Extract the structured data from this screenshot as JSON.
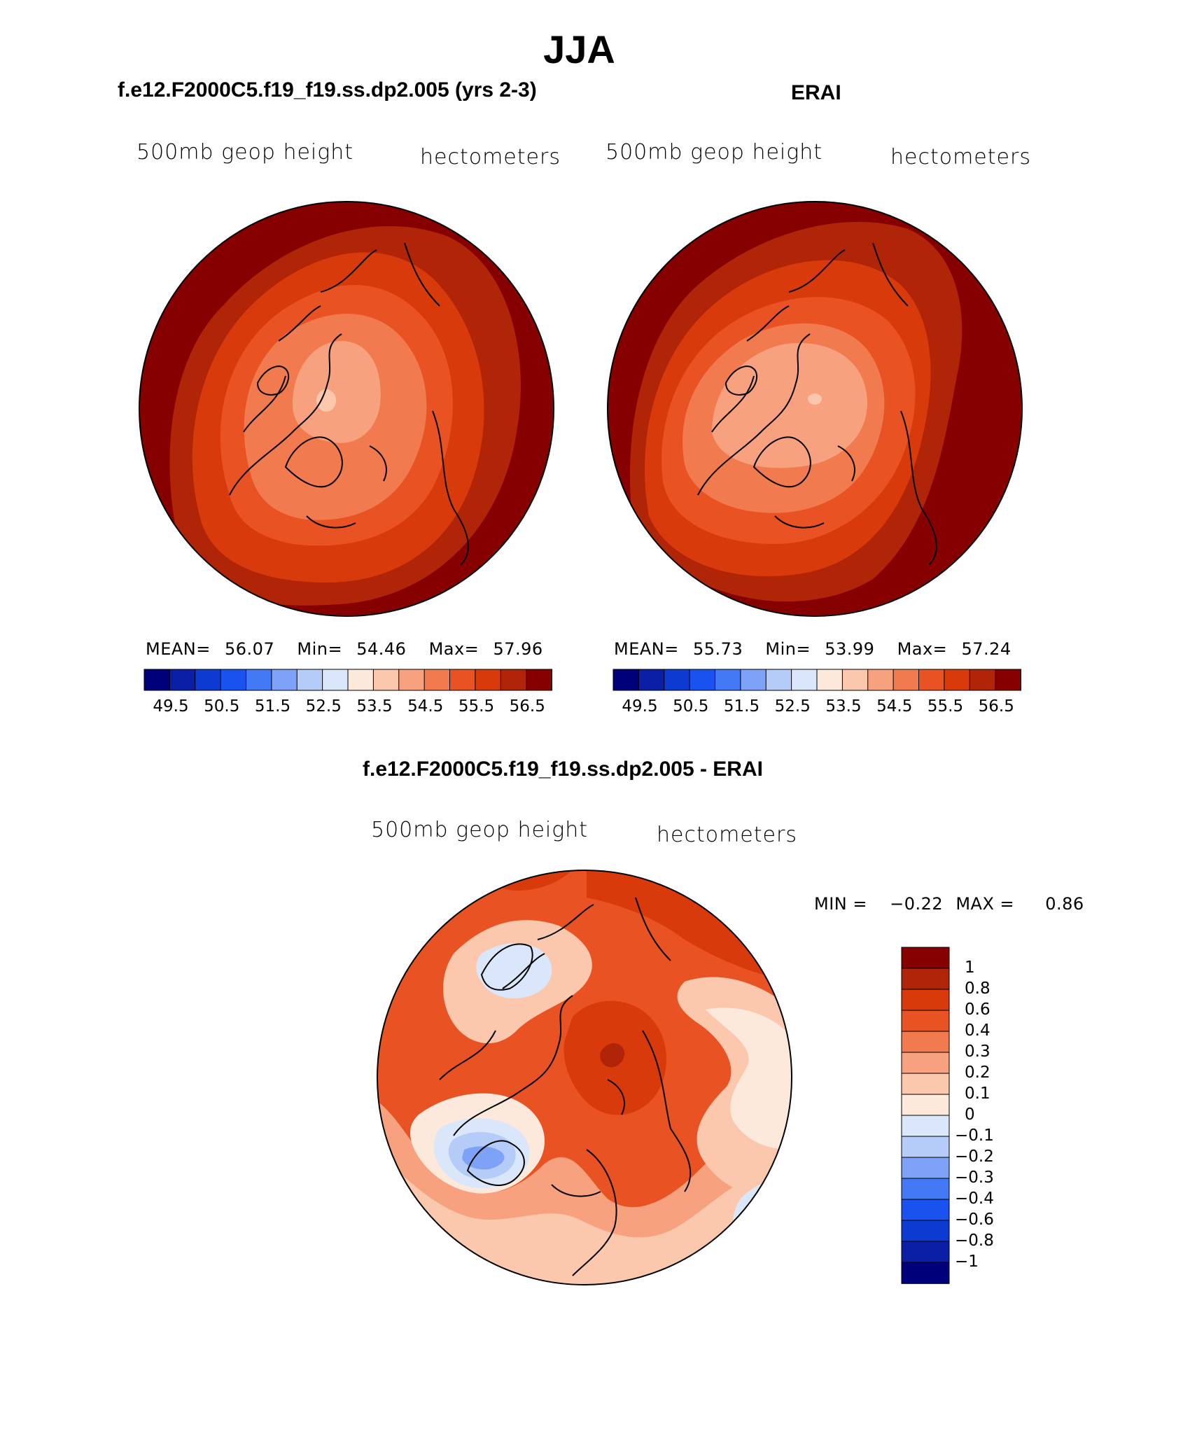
{
  "figure": {
    "season": "JJA"
  },
  "panels": [
    {
      "title": "f.e12.F2000C5.f19_f19.ss.dp2.005 (yrs 2-3)",
      "variable": "500mb geop height",
      "units": "hectometers",
      "stats": {
        "mean_label": "MEAN=",
        "mean": "56.07",
        "min_label": "Min=",
        "min": "54.46",
        "max_label": "Max=",
        "max": "57.96"
      }
    },
    {
      "title": "ERAI",
      "variable": "500mb geop height",
      "units": "hectometers",
      "stats": {
        "mean_label": "MEAN=",
        "mean": "55.73",
        "min_label": "Min=",
        "min": "53.99",
        "max_label": "Max=",
        "max": "57.24"
      }
    },
    {
      "title": "f.e12.F2000C5.f19_f19.ss.dp2.005 - ERAI",
      "variable": "500mb geop height",
      "units": "hectometers",
      "stats": {
        "min_label": "MIN =",
        "min": "−0.22",
        "max_label": "MAX =",
        "max": "0.86"
      }
    }
  ],
  "colorbar_abs": {
    "ticks": [
      "49.5",
      "50.5",
      "51.5",
      "52.5",
      "53.5",
      "54.5",
      "55.5",
      "56.5"
    ],
    "colors": [
      "#00007a",
      "#0a1fa6",
      "#0d3ad1",
      "#1a52f0",
      "#4479f5",
      "#7da2f7",
      "#b5ccf8",
      "#dae7fb",
      "#fde9dc",
      "#fbc8ad",
      "#f7a17e",
      "#f17a4e",
      "#e95222",
      "#d83a0b",
      "#b02408",
      "#860000"
    ]
  },
  "colorbar_diff": {
    "labels": [
      "1",
      "0.8",
      "0.6",
      "0.4",
      "0.3",
      "0.2",
      "0.1",
      "0",
      "−0.1",
      "−0.2",
      "−0.3",
      "−0.4",
      "−0.6",
      "−0.8",
      "−1"
    ],
    "colors": [
      "#860000",
      "#b02408",
      "#d83a0b",
      "#e95222",
      "#f17a4e",
      "#f7a17e",
      "#fbc8ad",
      "#fde9dc",
      "#dae7fb",
      "#b5ccf8",
      "#7da2f7",
      "#4479f5",
      "#1a52f0",
      "#0d3ad1",
      "#0a1fa6",
      "#00007a"
    ]
  },
  "map_colors": {
    "ring1": "#860000",
    "ring2": "#b02408",
    "ring3": "#d83a0b",
    "ring4": "#e95222",
    "ring5": "#f17a4e",
    "ring6": "#f7a17e",
    "ring7": "#fbc8ad",
    "neg1": "#dae7fb",
    "neg2": "#b5ccf8",
    "neg3": "#7da2f7"
  }
}
